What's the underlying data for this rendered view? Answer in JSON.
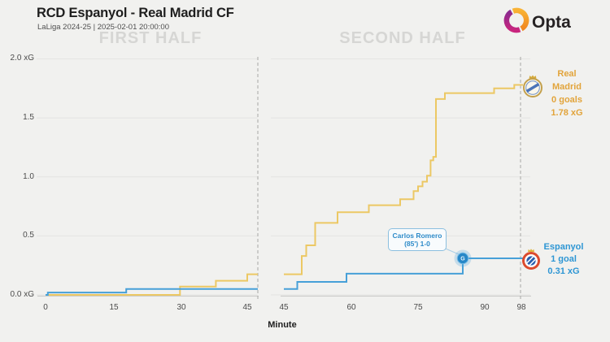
{
  "header": {
    "title": "RCD Espanyol - Real Madrid CF",
    "subtitle": "LaLiga 2024-25 | 2025-02-01 20:00:00"
  },
  "brand": {
    "name": "Opta",
    "purple_top": "#8a2a8f",
    "purple_bottom": "#c9257e",
    "orange_top": "#f9b234",
    "orange_bottom": "#f0871f",
    "text_color": "#262223"
  },
  "chart_data": {
    "type": "line",
    "variant": "cumulative-xg-step",
    "title": "RCD Espanyol - Real Madrid CF",
    "xlabel": "Minute",
    "ylabel": "xG",
    "ylim": [
      0,
      2.0
    ],
    "grid": true,
    "yticks": [
      {
        "value": 2.0,
        "label": "2.0 xG"
      },
      {
        "value": 1.5,
        "label": "1.5"
      },
      {
        "value": 1.0,
        "label": "1.0"
      },
      {
        "value": 0.5,
        "label": "0.5"
      },
      {
        "value": 0.0,
        "label": "0.0 xG"
      }
    ],
    "panels": [
      {
        "name": "FIRST HALF",
        "xdomain": [
          0,
          45
        ],
        "ticks": [
          "0",
          "15",
          "30",
          "45"
        ],
        "tick_minutes": [
          0,
          15,
          30,
          45
        ]
      },
      {
        "name": "SECOND HALF",
        "xdomain": [
          45,
          98
        ],
        "ticks": [
          "45",
          "60",
          "75",
          "90",
          "98"
        ],
        "tick_minutes": [
          45,
          60,
          75,
          90,
          98
        ]
      }
    ],
    "series": [
      {
        "name": "Real Madrid",
        "color": "#ecc864",
        "label_color": "#e2a43b",
        "goals": 0,
        "goals_label": "0 goals",
        "final_xg": 1.78,
        "xg_label": "1.78 xG",
        "first_half": [
          [
            0,
            0
          ],
          [
            30,
            0.07
          ],
          [
            38,
            0.12
          ],
          [
            45,
            0.175
          ]
        ],
        "second_half": [
          [
            45,
            0.175
          ],
          [
            49,
            0.33
          ],
          [
            50,
            0.42
          ],
          [
            52,
            0.61
          ],
          [
            57,
            0.7
          ],
          [
            64,
            0.76
          ],
          [
            71,
            0.81
          ],
          [
            74,
            0.88
          ],
          [
            75,
            0.92
          ],
          [
            76,
            0.96
          ],
          [
            77,
            1.01
          ],
          [
            77.8,
            1.14
          ],
          [
            78.4,
            1.17
          ],
          [
            79,
            1.66
          ],
          [
            81,
            1.71
          ],
          [
            92,
            1.75
          ],
          [
            96.5,
            1.78
          ]
        ]
      },
      {
        "name": "Espanyol",
        "color": "#47a0d8",
        "label_color": "#2e96d4",
        "goals": 1,
        "goals_label": "1 goal",
        "final_xg": 0.31,
        "xg_label": "0.31 xG",
        "first_half": [
          [
            0,
            0
          ],
          [
            0.5,
            0.02
          ],
          [
            18,
            0.05
          ]
        ],
        "second_half": [
          [
            45,
            0.05
          ],
          [
            48,
            0.11
          ],
          [
            59,
            0.18
          ],
          [
            85,
            0.31
          ]
        ]
      }
    ],
    "goal_marker": {
      "team": "Espanyol",
      "minute": 85,
      "xg": 0.31,
      "glyph": "G"
    },
    "annotation": {
      "line1": "Carlos Romero",
      "line2": "(85') 1-0",
      "color": "#2e8bc9"
    }
  }
}
